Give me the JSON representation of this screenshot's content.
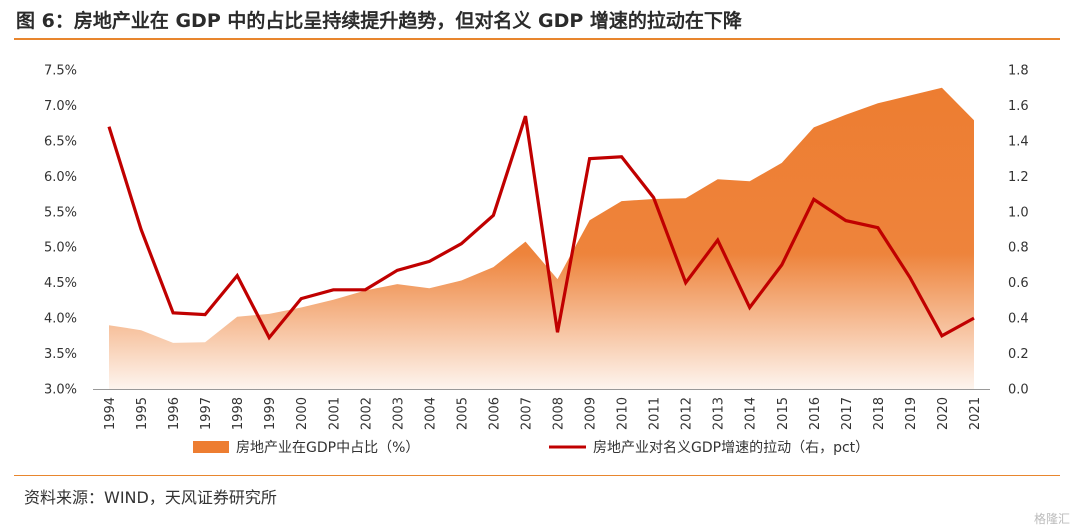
{
  "header": {
    "title": "图 6：房地产业在 GDP 中的占比呈持续提升趋势，但对名义 GDP 增速的拉动在下降"
  },
  "footer": {
    "source": "资料来源：WIND，天风证券研究所",
    "watermark": "格隆汇"
  },
  "chart_data": {
    "type": "area+line",
    "categories": [
      "1994",
      "1995",
      "1996",
      "1997",
      "1998",
      "1999",
      "2000",
      "2001",
      "2002",
      "2003",
      "2004",
      "2005",
      "2006",
      "2007",
      "2008",
      "2009",
      "2010",
      "2011",
      "2012",
      "2013",
      "2014",
      "2015",
      "2016",
      "2017",
      "2018",
      "2019",
      "2020",
      "2021"
    ],
    "left_axis": {
      "ticks": [
        "7.5%",
        "7.0%",
        "6.5%",
        "6.0%",
        "5.5%",
        "5.0%",
        "4.5%",
        "4.0%",
        "3.5%",
        "3.0%"
      ],
      "min": 3.0,
      "max": 7.5
    },
    "right_axis": {
      "ticks": [
        "1.8",
        "1.6",
        "1.4",
        "1.2",
        "1.0",
        "0.8",
        "0.6",
        "0.4",
        "0.2",
        "0.0"
      ],
      "min": 0.0,
      "max": 1.8
    },
    "series": [
      {
        "name": "房地产业在GDP中占比（%）",
        "type": "area",
        "axis": "left",
        "color": "#ed7d31",
        "values": [
          3.9,
          3.83,
          3.65,
          3.66,
          4.02,
          4.06,
          4.15,
          4.26,
          4.39,
          4.48,
          4.42,
          4.53,
          4.72,
          5.08,
          4.55,
          5.38,
          5.65,
          5.68,
          5.69,
          5.96,
          5.93,
          6.19,
          6.69,
          6.87,
          7.03,
          7.14,
          7.25,
          6.79
        ]
      },
      {
        "name": "房地产业对名义GDP增速的拉动（右，pct）",
        "type": "line",
        "axis": "right",
        "color": "#c00000",
        "values": [
          1.48,
          0.9,
          0.43,
          0.42,
          0.64,
          0.29,
          0.51,
          0.56,
          0.56,
          0.67,
          0.72,
          0.82,
          0.98,
          1.54,
          0.32,
          1.3,
          1.31,
          1.08,
          0.6,
          0.84,
          0.46,
          0.7,
          1.07,
          0.95,
          0.91,
          0.63,
          0.3,
          0.4
        ]
      }
    ],
    "legend_placement": "bottom",
    "grid": false
  }
}
